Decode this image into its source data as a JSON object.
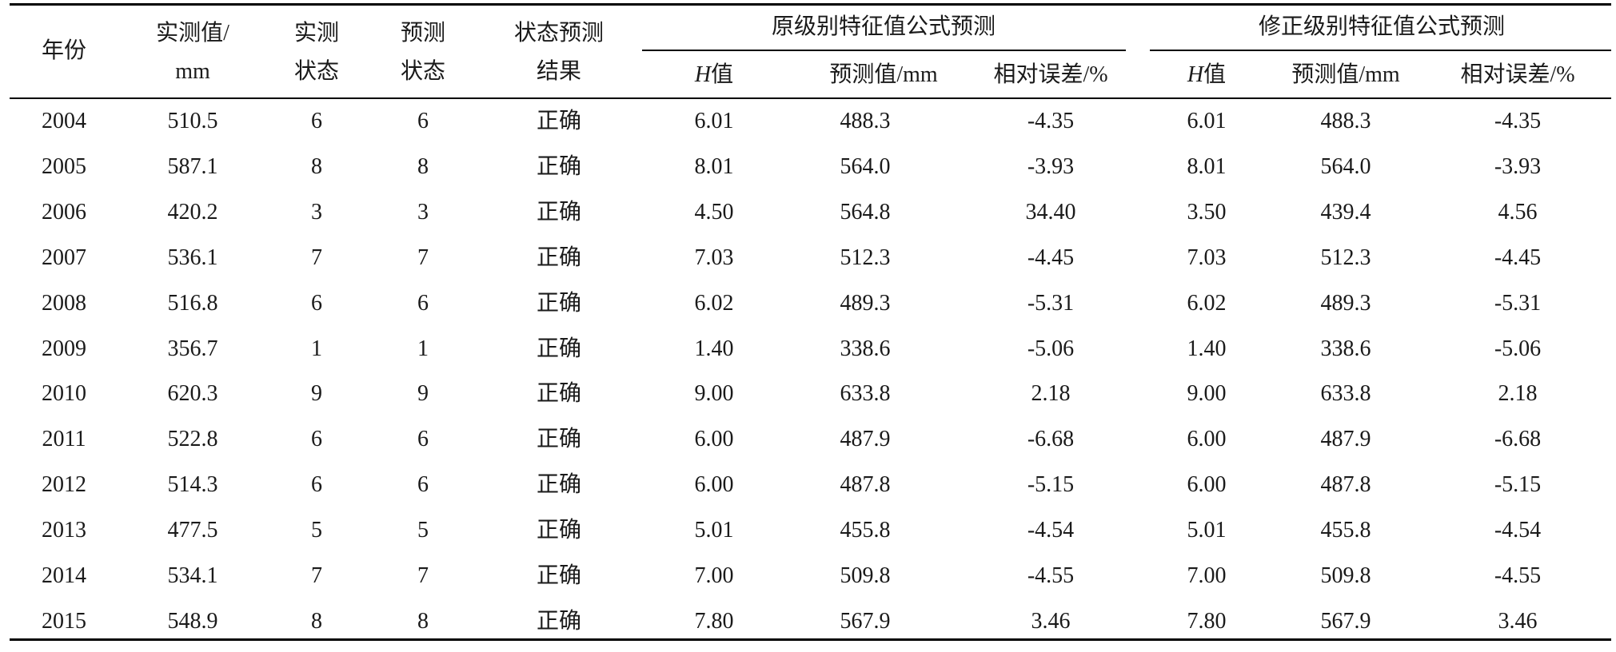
{
  "table": {
    "headers": {
      "year": "年份",
      "measured_value_line1": "实测值/",
      "measured_value_line2": "mm",
      "measured_state_line1": "实测",
      "measured_state_line2": "状态",
      "predicted_state_line1": "预测",
      "predicted_state_line2": "状态",
      "state_result_line1": "状态预测",
      "state_result_line2": "结果",
      "group_original": "原级别特征值公式预测",
      "group_corrected": "修正级别特征值公式预测",
      "h_italic": "H",
      "h_suffix": "值",
      "predicted_value": "预测值/mm",
      "relative_error": "相对误差/%"
    },
    "rows": [
      {
        "year": "2004",
        "measured": "510.5",
        "m_state": "6",
        "p_state": "6",
        "result": "正确",
        "o_h": "6.01",
        "o_pred": "488.3",
        "o_err": "-4.35",
        "c_h": "6.01",
        "c_pred": "488.3",
        "c_err": "-4.35"
      },
      {
        "year": "2005",
        "measured": "587.1",
        "m_state": "8",
        "p_state": "8",
        "result": "正确",
        "o_h": "8.01",
        "o_pred": "564.0",
        "o_err": "-3.93",
        "c_h": "8.01",
        "c_pred": "564.0",
        "c_err": "-3.93"
      },
      {
        "year": "2006",
        "measured": "420.2",
        "m_state": "3",
        "p_state": "3",
        "result": "正确",
        "o_h": "4.50",
        "o_pred": "564.8",
        "o_err": "34.40",
        "c_h": "3.50",
        "c_pred": "439.4",
        "c_err": "4.56"
      },
      {
        "year": "2007",
        "measured": "536.1",
        "m_state": "7",
        "p_state": "7",
        "result": "正确",
        "o_h": "7.03",
        "o_pred": "512.3",
        "o_err": "-4.45",
        "c_h": "7.03",
        "c_pred": "512.3",
        "c_err": "-4.45"
      },
      {
        "year": "2008",
        "measured": "516.8",
        "m_state": "6",
        "p_state": "6",
        "result": "正确",
        "o_h": "6.02",
        "o_pred": "489.3",
        "o_err": "-5.31",
        "c_h": "6.02",
        "c_pred": "489.3",
        "c_err": "-5.31"
      },
      {
        "year": "2009",
        "measured": "356.7",
        "m_state": "1",
        "p_state": "1",
        "result": "正确",
        "o_h": "1.40",
        "o_pred": "338.6",
        "o_err": "-5.06",
        "c_h": "1.40",
        "c_pred": "338.6",
        "c_err": "-5.06"
      },
      {
        "year": "2010",
        "measured": "620.3",
        "m_state": "9",
        "p_state": "9",
        "result": "正确",
        "o_h": "9.00",
        "o_pred": "633.8",
        "o_err": "2.18",
        "c_h": "9.00",
        "c_pred": "633.8",
        "c_err": "2.18"
      },
      {
        "year": "2011",
        "measured": "522.8",
        "m_state": "6",
        "p_state": "6",
        "result": "正确",
        "o_h": "6.00",
        "o_pred": "487.9",
        "o_err": "-6.68",
        "c_h": "6.00",
        "c_pred": "487.9",
        "c_err": "-6.68"
      },
      {
        "year": "2012",
        "measured": "514.3",
        "m_state": "6",
        "p_state": "6",
        "result": "正确",
        "o_h": "6.00",
        "o_pred": "487.8",
        "o_err": "-5.15",
        "c_h": "6.00",
        "c_pred": "487.8",
        "c_err": "-5.15"
      },
      {
        "year": "2013",
        "measured": "477.5",
        "m_state": "5",
        "p_state": "5",
        "result": "正确",
        "o_h": "5.01",
        "o_pred": "455.8",
        "o_err": "-4.54",
        "c_h": "5.01",
        "c_pred": "455.8",
        "c_err": "-4.54"
      },
      {
        "year": "2014",
        "measured": "534.1",
        "m_state": "7",
        "p_state": "7",
        "result": "正确",
        "o_h": "7.00",
        "o_pred": "509.8",
        "o_err": "-4.55",
        "c_h": "7.00",
        "c_pred": "509.8",
        "c_err": "-4.55"
      },
      {
        "year": "2015",
        "measured": "548.9",
        "m_state": "8",
        "p_state": "8",
        "result": "正确",
        "o_h": "7.80",
        "o_pred": "567.9",
        "o_err": "3.46",
        "c_h": "7.80",
        "c_pred": "567.9",
        "c_err": "3.46"
      }
    ]
  }
}
